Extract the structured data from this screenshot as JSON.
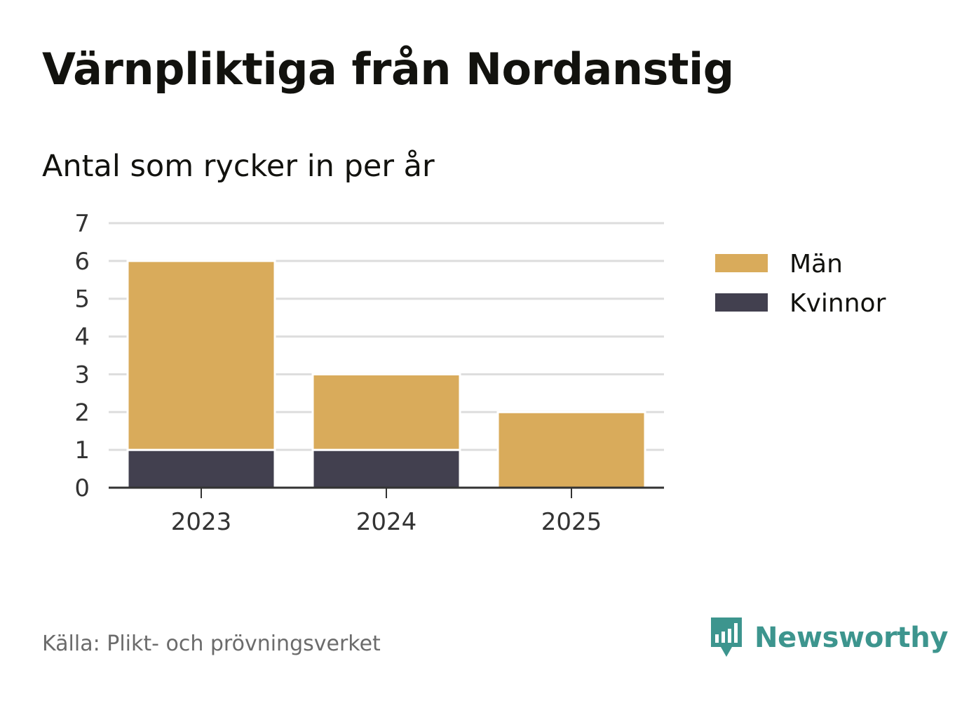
{
  "header": {
    "title": "Värnpliktiga från Nordanstig",
    "subtitle": "Antal som rycker in per år"
  },
  "footer": {
    "source": "Källa: Plikt- och prövningsverket",
    "brand": "Newsworthy",
    "brand_icon": "bar-chart-speech-bubble-icon"
  },
  "colors": {
    "man": "#d9ab5b",
    "kvinnor": "#42404f",
    "grid": "#dddddd",
    "axis": "#333333",
    "brand": "#3d958e"
  },
  "chart_data": {
    "type": "bar",
    "stacked": true,
    "categories": [
      "2023",
      "2024",
      "2025"
    ],
    "series": [
      {
        "name": "Kvinnor",
        "values": [
          1,
          1,
          0
        ],
        "color": "#42404f"
      },
      {
        "name": "Män",
        "values": [
          5,
          2,
          2
        ],
        "color": "#d9ab5b"
      }
    ],
    "legend_order": [
      "Män",
      "Kvinnor"
    ],
    "y_ticks": [
      "0",
      "1",
      "2",
      "3",
      "4",
      "5",
      "6",
      "7"
    ],
    "ylim": [
      0,
      7
    ],
    "grid": true,
    "legend_position": "right"
  }
}
